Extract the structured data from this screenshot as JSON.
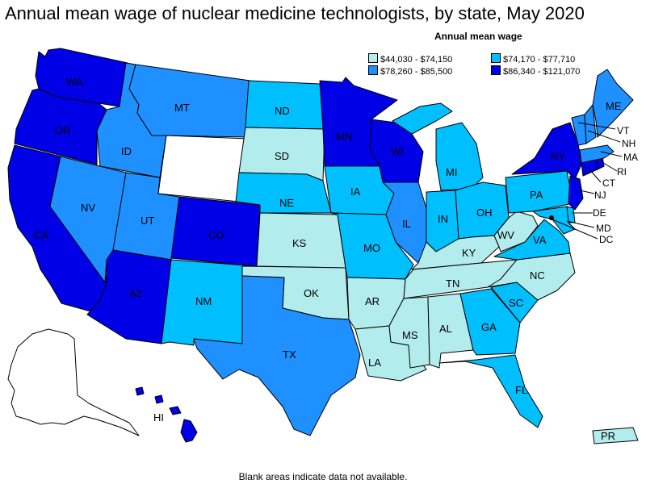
{
  "title": "Annual mean wage of nuclear medicine technologists, by state, May 2020",
  "legend": {
    "title": "Annual mean wage",
    "items": [
      {
        "label": "$44,030 - $74,150",
        "color": "#b3ecec"
      },
      {
        "label": "$74,170 - $77,710",
        "color": "#00bfff"
      },
      {
        "label": "$78,260 - $85,500",
        "color": "#1e90ff"
      },
      {
        "label": "$86,340 - $121,070",
        "color": "#0000e6"
      }
    ]
  },
  "colors": {
    "bin1": "#b3ecec",
    "bin2": "#00bfff",
    "bin3": "#1e90ff",
    "bin4": "#0000e6",
    "no_data": "#ffffff"
  },
  "states": {
    "WA": "WA",
    "OR": "OR",
    "CA": "CA",
    "NV": "NV",
    "ID": "ID",
    "MT": "MT",
    "UT": "UT",
    "AZ": "AZ",
    "CO": "CO",
    "NM": "NM",
    "ND": "ND",
    "SD": "SD",
    "NE": "NE",
    "KS": "KS",
    "OK": "OK",
    "TX": "TX",
    "MN": "MN",
    "IA": "IA",
    "MO": "MO",
    "AR": "AR",
    "LA": "LA",
    "WI": "WI",
    "IL": "IL",
    "MI": "MI",
    "IN": "IN",
    "OH": "OH",
    "KY": "KY",
    "TN": "TN",
    "MS": "MS",
    "AL": "AL",
    "GA": "GA",
    "FL": "FL",
    "SC": "SC",
    "NC": "NC",
    "VA": "VA",
    "WV": "WV",
    "PA": "PA",
    "NY": "NY",
    "ME": "ME",
    "VT": "VT",
    "NH": "NH",
    "MA": "MA",
    "RI": "RI",
    "CT": "CT",
    "NJ": "NJ",
    "DE": "DE",
    "MD": "MD",
    "DC": "DC",
    "HI": "HI",
    "PR": "PR"
  },
  "footnote": "Blank areas indicate data not available."
}
